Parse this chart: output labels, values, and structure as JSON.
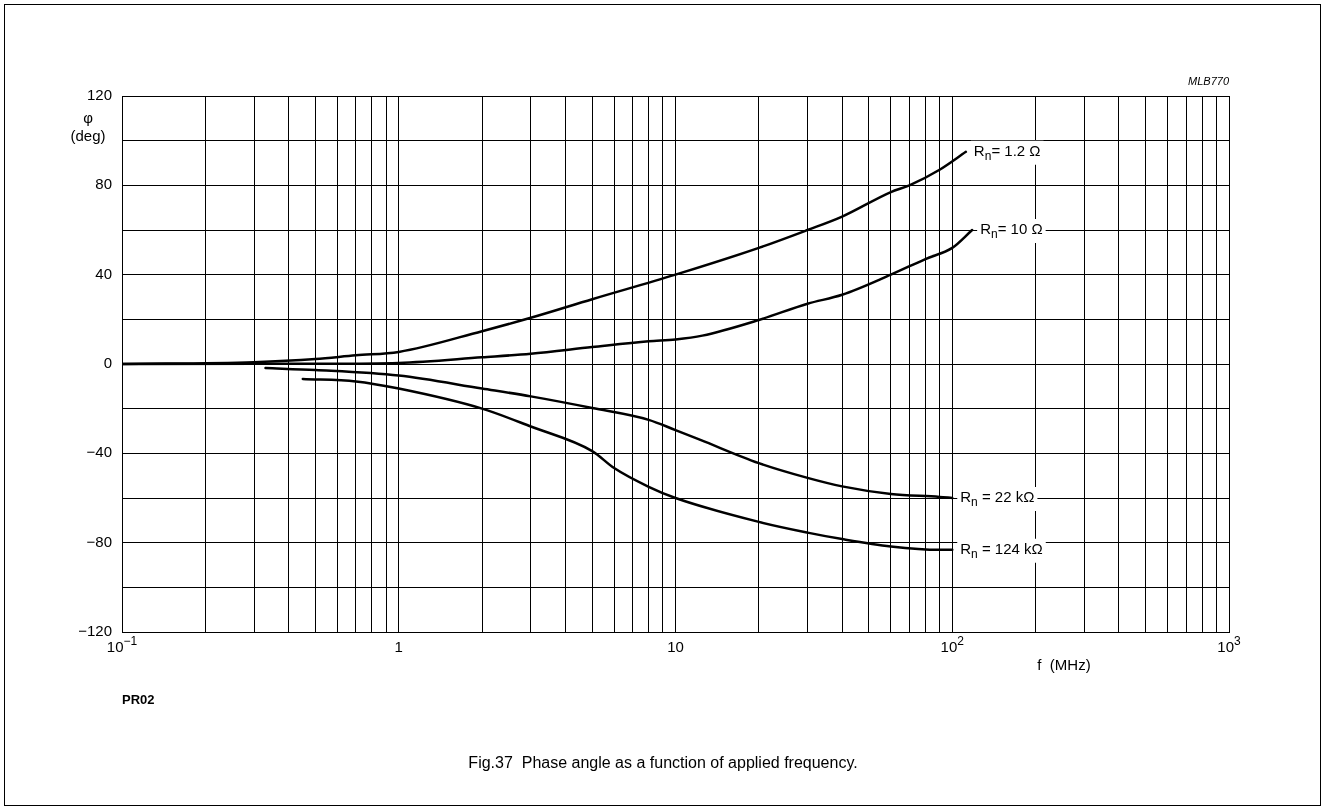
{
  "chart_data": {
    "type": "line",
    "xlabel": "f  (MHz)",
    "ylabel": "φ (deg)",
    "log": "x",
    "grid": true,
    "legend": false,
    "xlim": [
      0.1,
      1000
    ],
    "ylim": [
      -120,
      120
    ],
    "xticks": [
      {
        "value": 0.1,
        "label": "10$^{−1}$"
      },
      {
        "value": 0.2,
        "label": null
      },
      {
        "value": 0.3,
        "label": null
      },
      {
        "value": 0.4,
        "label": null
      },
      {
        "value": 0.5,
        "label": null
      },
      {
        "value": 0.6,
        "label": null
      },
      {
        "value": 0.7,
        "label": null
      },
      {
        "value": 0.8,
        "label": null
      },
      {
        "value": 0.9,
        "label": null
      },
      1,
      {
        "value": 2,
        "label": null
      },
      {
        "value": 3,
        "label": null
      },
      {
        "value": 4,
        "label": null
      },
      {
        "value": 5,
        "label": null
      },
      {
        "value": 6,
        "label": null
      },
      {
        "value": 7,
        "label": null
      },
      {
        "value": 8,
        "label": null
      },
      {
        "value": 9,
        "label": null
      },
      10,
      {
        "value": 20,
        "label": null
      },
      {
        "value": 30,
        "label": null
      },
      {
        "value": 40,
        "label": null
      },
      {
        "value": 50,
        "label": null
      },
      {
        "value": 60,
        "label": null
      },
      {
        "value": 70,
        "label": null
      },
      {
        "value": 80,
        "label": null
      },
      {
        "value": 90,
        "label": null
      },
      {
        "value": 100,
        "label": "10$^{2}$"
      },
      {
        "value": 200,
        "label": null
      },
      {
        "value": 300,
        "label": null
      },
      {
        "value": 400,
        "label": null
      },
      {
        "value": 500,
        "label": null
      },
      {
        "value": 600,
        "label": null
      },
      {
        "value": 700,
        "label": null
      },
      {
        "value": 800,
        "label": null
      },
      {
        "value": 900,
        "label": null
      },
      {
        "value": 1000,
        "label": "10$^{3}$"
      }
    ],
    "yticks": [
      {
        "value": -120,
        "label": "−120"
      },
      {
        "value": -100,
        "label": null
      },
      {
        "value": -80,
        "label": "−80"
      },
      {
        "value": -60,
        "label": null
      },
      {
        "value": -40,
        "label": "−40"
      },
      {
        "value": -20,
        "label": null
      },
      0,
      {
        "value": 20,
        "label": null
      },
      40,
      {
        "value": 60,
        "label": null
      },
      80,
      {
        "value": 100,
        "label": null
      },
      120
    ],
    "series": [
      {
        "name": "R$_{n}$= 1.2 Ω",
        "color": "#000000",
        "x": [
          0.1,
          0.3,
          0.5,
          0.7,
          1,
          2,
          3,
          5,
          10,
          20,
          30,
          40,
          60,
          70,
          90,
          112
        ],
        "values": [
          0,
          0.8,
          2.2,
          3.9,
          5.4,
          14.7,
          20.7,
          29,
          40,
          52,
          60,
          66,
          77,
          80,
          87,
          95
        ]
      },
      {
        "name": "R$_{n}$= 10 Ω",
        "color": "#000000",
        "x": [
          0.1,
          0.5,
          1,
          2,
          3,
          5,
          8,
          10,
          12.5,
          20,
          30,
          40,
          60,
          80,
          100,
          118
        ],
        "values": [
          0,
          0.1,
          0.5,
          3,
          4.6,
          7.6,
          10.2,
          11,
          12.7,
          19.7,
          27,
          31,
          40,
          47,
          52,
          60
        ]
      },
      {
        "name": "R$_{n}$ = 22 kΩ",
        "color": "#000000",
        "x": [
          0.33,
          0.5,
          1,
          2,
          3,
          5,
          8,
          10,
          12.3,
          20,
          30,
          40,
          60,
          90,
          100
        ],
        "values": [
          -1.8,
          -2.7,
          -5.2,
          -11,
          -14.5,
          -19.7,
          -25,
          -29.6,
          -34,
          -44.4,
          -51,
          -54.8,
          -58.2,
          -59.5,
          -60
        ]
      },
      {
        "name": "R$_{n}$ = 124 kΩ",
        "color": "#000000",
        "x": [
          0.45,
          0.7,
          1,
          2,
          3,
          5,
          6,
          8,
          10,
          20,
          30,
          40,
          60,
          90,
          100
        ],
        "values": [
          -6.7,
          -7.8,
          -11,
          -20,
          -28,
          -39,
          -46.6,
          -55,
          -60,
          -70.7,
          -75.5,
          -78.4,
          -81.7,
          -83.2,
          -83.2
        ]
      }
    ],
    "annotations": [
      "MLB770",
      "PR02",
      "Fig.37  Phase angle as a function of applied frequency."
    ]
  }
}
